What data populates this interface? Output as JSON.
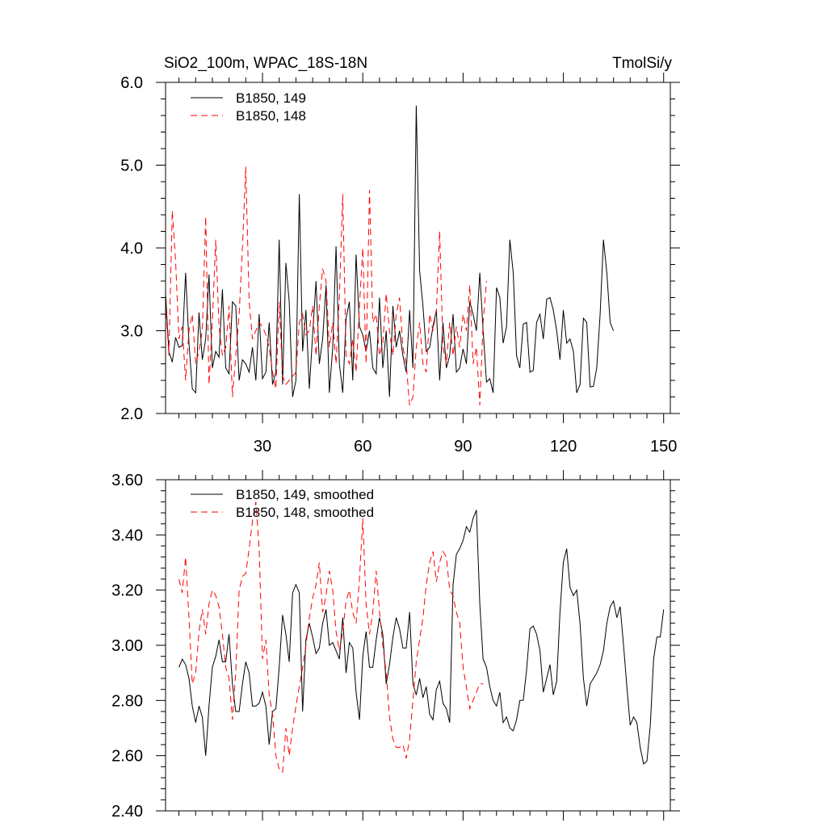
{
  "chart_data": [
    {
      "type": "line",
      "title_left": "SiO2_100m, WPAC_18S-18N",
      "title_right": "TmolSi/y",
      "xlabel": "",
      "ylabel": "",
      "xlim": [
        1,
        152
      ],
      "ylim": [
        2.0,
        6.0
      ],
      "xticks": [
        30,
        60,
        90,
        120,
        150
      ],
      "xtick_labels": [
        "30",
        "60",
        "90",
        "120",
        "150"
      ],
      "yticks": [
        2.0,
        3.0,
        4.0,
        5.0,
        6.0
      ],
      "ytick_labels": [
        "2.0",
        "3.0",
        "4.0",
        "5.0",
        "6.0"
      ],
      "legend_position": "top-left",
      "series": [
        {
          "name": "B1850, 149",
          "color": "#000000",
          "dash": "solid",
          "x_start": 1,
          "values": [
            3.45,
            2.75,
            2.62,
            2.92,
            2.8,
            2.82,
            3.7,
            2.85,
            2.3,
            2.25,
            3.22,
            2.65,
            2.9,
            3.68,
            2.55,
            2.75,
            2.68,
            3.5,
            2.55,
            2.48,
            3.35,
            3.3,
            2.4,
            2.65,
            2.6,
            2.5,
            2.8,
            2.4,
            3.2,
            2.42,
            2.5,
            3.1,
            2.35,
            2.5,
            4.1,
            2.35,
            3.82,
            3.35,
            2.2,
            2.4,
            4.65,
            2.75,
            3.25,
            2.3,
            2.95,
            3.6,
            2.6,
            2.9,
            3.55,
            2.25,
            2.8,
            4.02,
            2.6,
            2.25,
            3.15,
            3.35,
            2.4,
            3.92,
            3.05,
            2.95,
            2.75,
            3.0,
            2.55,
            2.48,
            3.4,
            2.55,
            3.0,
            2.2,
            3.3,
            2.8,
            3.0,
            2.7,
            2.5,
            3.25,
            2.55,
            5.72,
            3.72,
            3.3,
            2.75,
            2.8,
            3.05,
            3.25,
            2.4,
            3.1,
            2.55,
            2.7,
            3.2,
            2.5,
            2.55,
            2.78,
            2.6,
            3.35,
            3.2,
            3.0,
            3.7,
            3.0,
            2.38,
            2.42,
            2.25,
            3.52,
            3.4,
            2.85,
            3.05,
            4.1,
            3.7,
            2.7,
            2.55,
            3.08,
            3.1,
            2.5,
            2.52,
            3.1,
            3.2,
            2.9,
            3.38,
            3.4,
            3.25,
            3.0,
            2.65,
            3.25,
            2.85,
            2.9,
            2.75,
            2.25,
            2.35,
            3.15,
            3.1,
            2.32,
            2.33,
            2.55,
            3.2,
            4.1,
            3.7,
            3.1,
            3.0
          ],
          "x_note": "points from x=1 step 1"
        },
        {
          "name": "B1850, 148",
          "color": "#ff0000",
          "dash": "dashed",
          "x_start": 1,
          "values": [
            3.35,
            2.7,
            4.45,
            3.85,
            2.9,
            3.05,
            2.4,
            3.0,
            3.2,
            2.6,
            2.75,
            3.0,
            4.38,
            2.35,
            3.1,
            4.1,
            3.05,
            2.7,
            2.8,
            3.3,
            2.2,
            2.7,
            3.2,
            4.0,
            4.98,
            3.35,
            2.9,
            3.0,
            3.1,
            3.05,
            2.95,
            2.8,
            2.5,
            2.3,
            3.35,
            2.45,
            2.35,
            2.4,
            2.45,
            2.5,
            3.1,
            3.2,
            2.95,
            3.0,
            3.3,
            2.7,
            3.3,
            3.75,
            3.6,
            2.8,
            3.1,
            2.6,
            3.4,
            4.65,
            2.7,
            2.6,
            2.9,
            2.5,
            3.3,
            4.0,
            2.6,
            4.7,
            3.1,
            3.2,
            2.7,
            2.85,
            3.45,
            3.0,
            2.7,
            3.2,
            3.4,
            2.8,
            2.6,
            2.1,
            2.2,
            2.8,
            3.1,
            2.6,
            2.5,
            3.2,
            3.0,
            3.25,
            4.2,
            2.8,
            2.6,
            3.1,
            2.7,
            3.05,
            2.8,
            3.2,
            3.0,
            3.55,
            2.6,
            2.8,
            2.1,
            3.1,
            3.6
          ],
          "x_note": "dashed red, ends near x=101"
        }
      ]
    },
    {
      "type": "line",
      "xlabel": "",
      "ylabel": "",
      "xlim": [
        1,
        152
      ],
      "ylim": [
        2.4,
        3.6
      ],
      "xticks": [
        30,
        60,
        90,
        120,
        150
      ],
      "yticks": [
        2.4,
        2.6,
        2.8,
        3.0,
        3.2,
        3.4,
        3.6
      ],
      "ytick_labels": [
        "2.40",
        "2.60",
        "2.80",
        "3.00",
        "3.20",
        "3.40",
        "3.60"
      ],
      "legend_position": "top-left",
      "series": [
        {
          "name": "B1850, 149, smoothed",
          "color": "#000000",
          "dash": "solid",
          "x_start": 5,
          "values": [
            2.92,
            2.95,
            2.93,
            2.88,
            2.78,
            2.72,
            2.78,
            2.74,
            2.6,
            2.78,
            2.92,
            2.96,
            3.02,
            2.94,
            2.94,
            3.04,
            2.86,
            2.76,
            2.76,
            2.86,
            2.94,
            2.9,
            2.78,
            2.78,
            2.79,
            2.83,
            2.78,
            2.64,
            2.76,
            2.77,
            2.92,
            3.11,
            3.04,
            2.94,
            3.19,
            3.22,
            3.19,
            2.76,
            3.02,
            3.08,
            3.03,
            2.97,
            2.99,
            3.08,
            3.13,
            3.0,
            3.01,
            2.98,
            2.95,
            3.1,
            2.9,
            3.01,
            2.99,
            2.83,
            2.73,
            2.96,
            3.05,
            2.92,
            2.92,
            3.02,
            3.1,
            3.04,
            2.86,
            2.93,
            3.03,
            3.1,
            3.06,
            2.99,
            2.99,
            3.12,
            2.86,
            2.82,
            2.88,
            2.81,
            2.85,
            2.75,
            2.73,
            2.84,
            2.87,
            2.79,
            2.77,
            2.72,
            3.22,
            3.33,
            3.35,
            3.38,
            3.43,
            3.41,
            3.46,
            3.49,
            3.15,
            2.95,
            2.92,
            2.85,
            2.8,
            2.78,
            2.83,
            2.72,
            2.74,
            2.7,
            2.69,
            2.73,
            2.8,
            2.8,
            2.91,
            3.06,
            3.07,
            3.04,
            2.98,
            2.83,
            2.88,
            2.93,
            2.82,
            2.87,
            3.12,
            3.3,
            3.35,
            3.21,
            3.18,
            3.2,
            3.08,
            2.88,
            2.78,
            2.86,
            2.88,
            2.9,
            2.93,
            2.98,
            3.08,
            3.14,
            3.16,
            3.1,
            3.14,
            3.0,
            2.85,
            2.71,
            2.74,
            2.72,
            2.63,
            2.57,
            2.58,
            2.71,
            2.95,
            3.03,
            3.03,
            3.13
          ],
          "x_note": "points from x=5 step 1"
        },
        {
          "name": "B1850, 148, smoothed",
          "color": "#ff0000",
          "dash": "dashed",
          "x_start": 5,
          "values": [
            3.24,
            3.19,
            3.32,
            3.1,
            2.86,
            2.9,
            3.05,
            3.13,
            3.04,
            3.15,
            3.2,
            3.18,
            3.14,
            3.04,
            2.92,
            2.88,
            2.73,
            2.9,
            3.2,
            3.25,
            3.26,
            3.35,
            3.45,
            3.52,
            3.35,
            2.95,
            3.02,
            2.82,
            2.75,
            2.6,
            2.55,
            2.54,
            2.7,
            2.6,
            2.7,
            2.78,
            2.85,
            2.92,
            3.0,
            3.1,
            3.17,
            3.22,
            3.3,
            3.12,
            3.18,
            3.27,
            3.2,
            3.05,
            2.98,
            3.05,
            3.16,
            3.2,
            3.12,
            3.08,
            3.24,
            3.46,
            3.15,
            3.04,
            3.12,
            3.27,
            3.12,
            3.0,
            2.9,
            2.74,
            2.66,
            2.63,
            2.63,
            2.64,
            2.59,
            2.66,
            2.8,
            2.94,
            3.02,
            3.1,
            3.22,
            3.3,
            3.34,
            3.23,
            3.3,
            3.34,
            3.32,
            3.2,
            3.18,
            3.12,
            3.08,
            2.92,
            2.85,
            2.77,
            2.8,
            2.83,
            2.86,
            2.86
          ],
          "x_note": "dashed red, ends near x=101"
        }
      ]
    }
  ]
}
